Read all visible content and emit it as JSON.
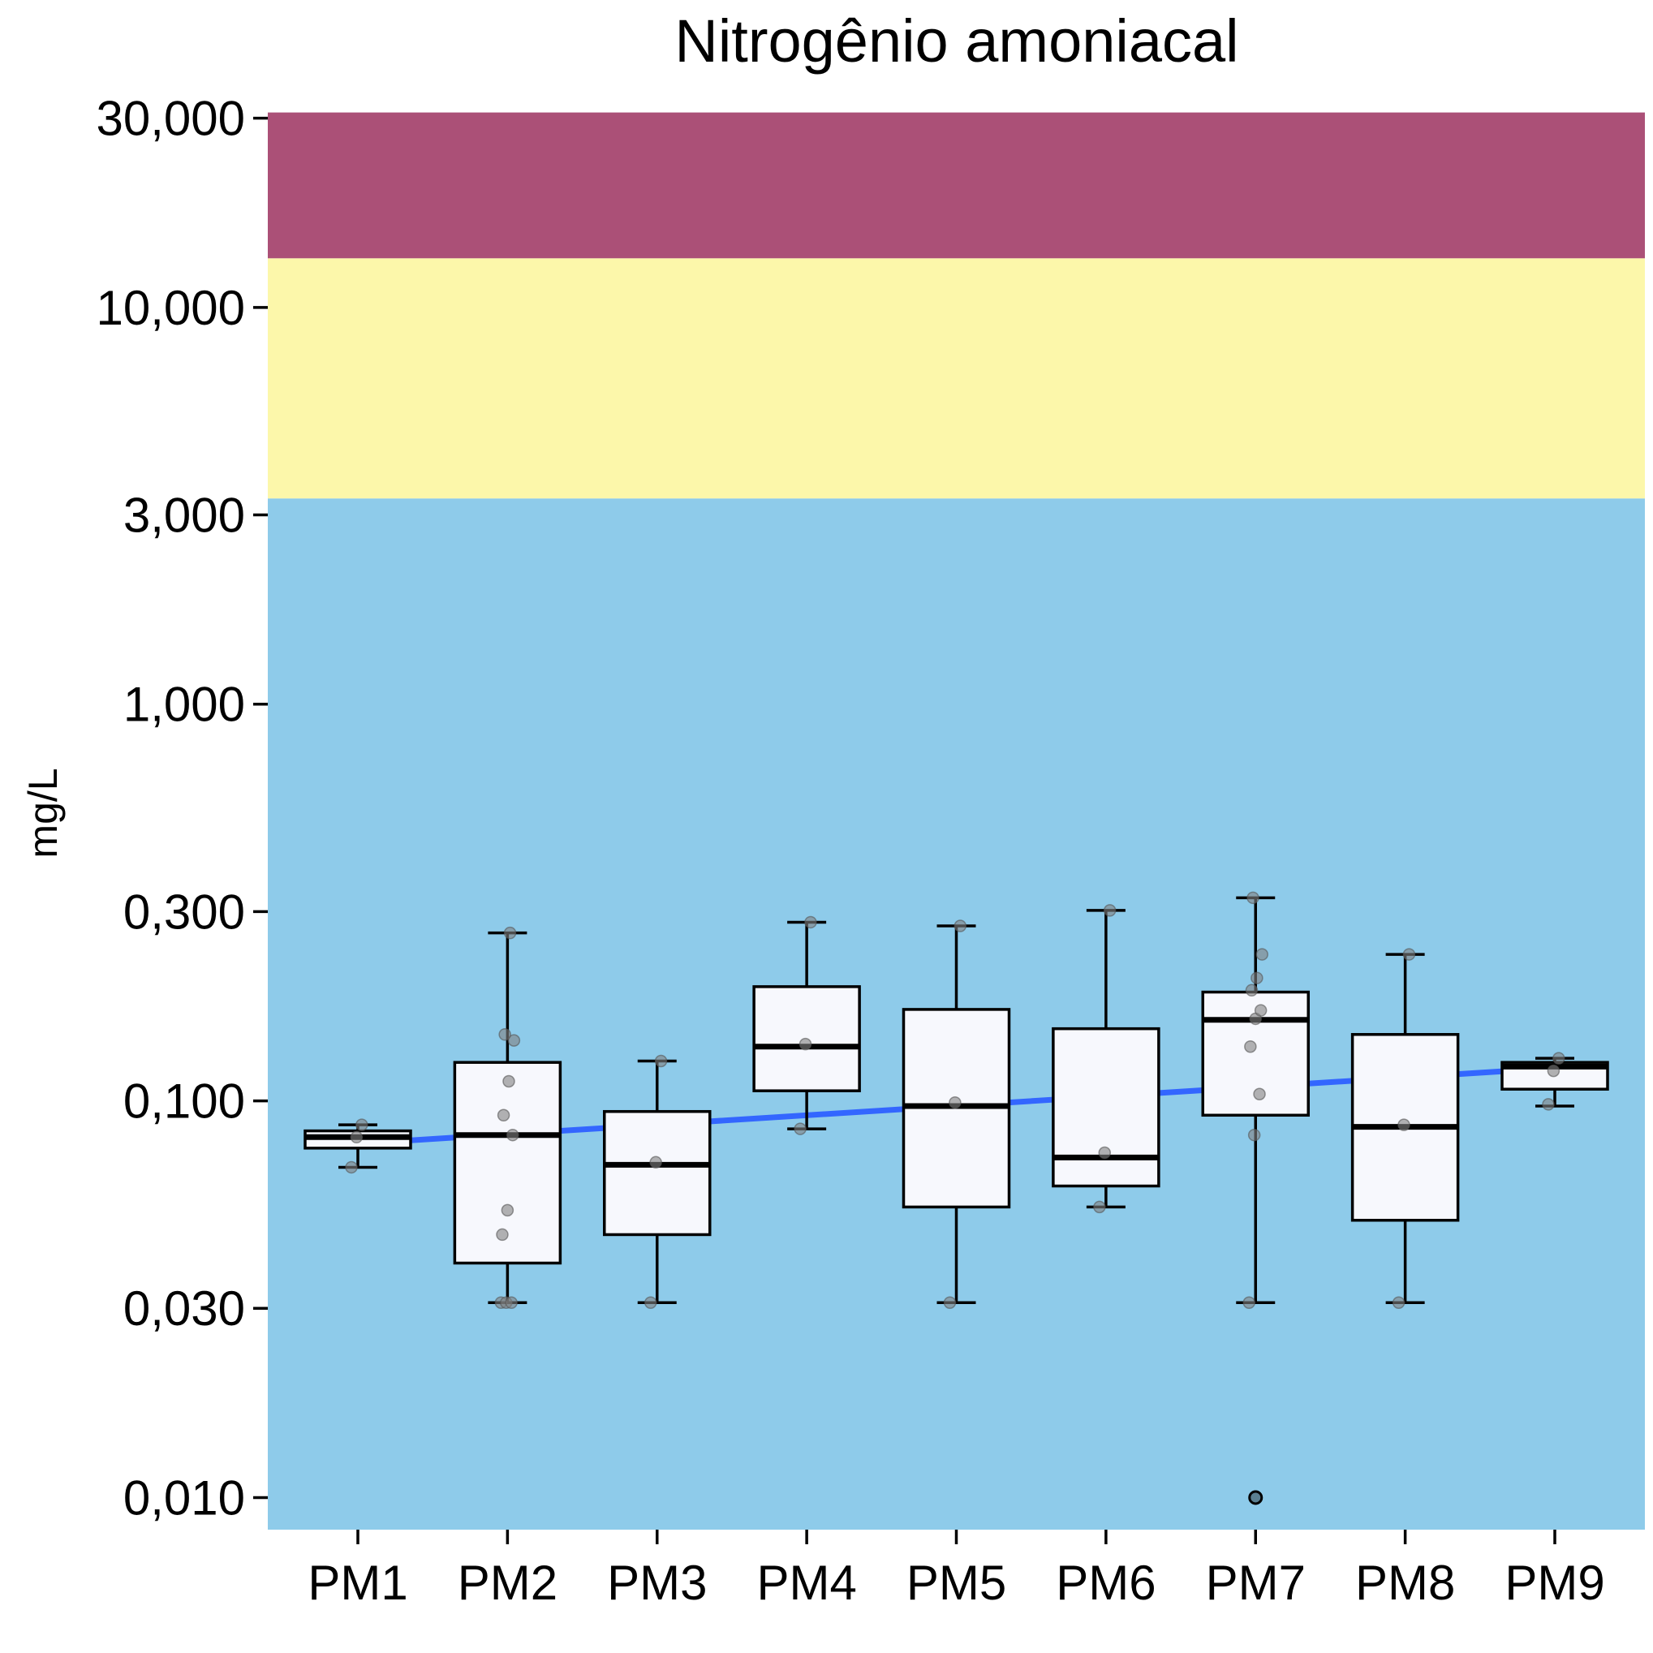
{
  "chart_data": {
    "type": "box",
    "title": "Nitrogênio amoniacal",
    "xlabel": "",
    "ylabel": "mg/L",
    "yscale": "log10",
    "ylim": [
      0.0083,
      34
    ],
    "yticks": [
      {
        "value": 30,
        "label": "30,000"
      },
      {
        "value": 10,
        "label": "10,000"
      },
      {
        "value": 3,
        "label": "3,000"
      },
      {
        "value": 1,
        "label": "1,000"
      },
      {
        "value": 0.3,
        "label": "0,300"
      },
      {
        "value": 0.1,
        "label": "0,100"
      },
      {
        "value": 0.03,
        "label": "0,030"
      },
      {
        "value": 0.01,
        "label": "0,010"
      }
    ],
    "grid": false,
    "colors": {
      "zone_low": "#8ecbea",
      "zone_mid": "#fcf7aa",
      "zone_high": "#ab5077",
      "box_fill": "#f7f8fd",
      "trend": "#3366ff",
      "point": "#808080"
    },
    "bands": [
      {
        "from": 0.0083,
        "to": 3.3,
        "color": "#8ecbea"
      },
      {
        "from": 3.3,
        "to": 13.3,
        "color": "#fcf7aa"
      },
      {
        "from": 13.3,
        "to": 31,
        "color": "#ab5077"
      }
    ],
    "categories": [
      "PM1",
      "PM2",
      "PM3",
      "PM4",
      "PM5",
      "PM6",
      "PM7",
      "PM8",
      "PM9"
    ],
    "boxes": [
      {
        "whisker_low": 0.068,
        "q1": 0.076,
        "median": 0.081,
        "q3": 0.084,
        "whisker_high": 0.087,
        "outliers": [],
        "points": [
          0.068,
          0.081,
          0.087
        ]
      },
      {
        "whisker_low": 0.031,
        "q1": 0.039,
        "median": 0.082,
        "q3": 0.125,
        "whisker_high": 0.265,
        "outliers": [],
        "points": [
          0.031,
          0.031,
          0.031,
          0.046,
          0.053,
          0.082,
          0.092,
          0.112,
          0.142,
          0.147,
          0.265
        ]
      },
      {
        "whisker_low": 0.031,
        "q1": 0.046,
        "median": 0.069,
        "q3": 0.094,
        "whisker_high": 0.126,
        "outliers": [],
        "points": [
          0.031,
          0.07,
          0.126
        ]
      },
      {
        "whisker_low": 0.085,
        "q1": 0.106,
        "median": 0.137,
        "q3": 0.194,
        "whisker_high": 0.282,
        "outliers": [],
        "points": [
          0.085,
          0.139,
          0.282
        ]
      },
      {
        "whisker_low": 0.031,
        "q1": 0.054,
        "median": 0.097,
        "q3": 0.17,
        "whisker_high": 0.276,
        "outliers": [],
        "points": [
          0.031,
          0.099,
          0.276
        ]
      },
      {
        "whisker_low": 0.054,
        "q1": 0.061,
        "median": 0.072,
        "q3": 0.152,
        "whisker_high": 0.302,
        "outliers": [],
        "points": [
          0.054,
          0.074,
          0.302
        ]
      },
      {
        "whisker_low": 0.031,
        "q1": 0.092,
        "median": 0.16,
        "q3": 0.188,
        "whisker_high": 0.325,
        "outliers": [
          0.01
        ],
        "points": [
          0.031,
          0.082,
          0.104,
          0.137,
          0.161,
          0.169,
          0.19,
          0.204,
          0.234,
          0.325
        ]
      },
      {
        "whisker_low": 0.031,
        "q1": 0.05,
        "median": 0.086,
        "q3": 0.147,
        "whisker_high": 0.234,
        "outliers": [],
        "points": [
          0.031,
          0.087,
          0.234
        ]
      },
      {
        "whisker_low": 0.097,
        "q1": 0.107,
        "median": 0.122,
        "q3": 0.125,
        "whisker_high": 0.128,
        "outliers": [],
        "points": [
          0.098,
          0.119,
          0.128
        ]
      }
    ],
    "trend_line": {
      "from": {
        "x": "PM1",
        "y": 0.078
      },
      "to": {
        "x": "PM9",
        "y": 0.121
      }
    },
    "legend": null
  }
}
